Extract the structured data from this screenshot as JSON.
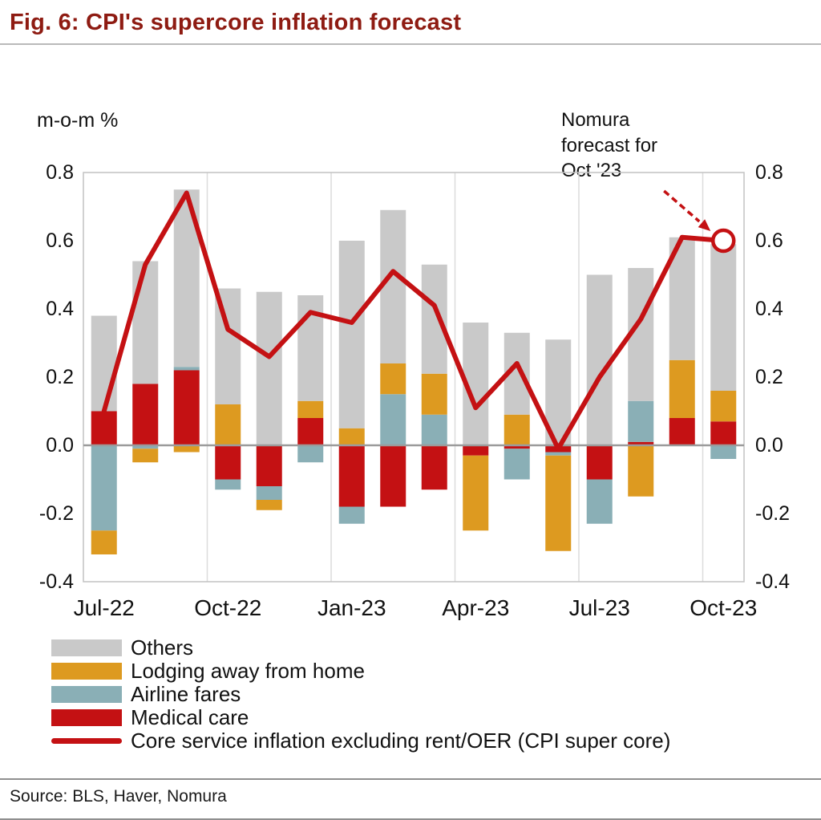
{
  "title": "Fig. 6: CPI's supercore inflation forecast",
  "axis_unit": "m-o-m %",
  "annotation": "Nomura\nforecast for\nOct '23",
  "source": "Source: BLS, Haver, Nomura",
  "legend": {
    "position": "bottom-left",
    "items": [
      {
        "label": "Others",
        "color": "#c9c9c9",
        "type": "rect"
      },
      {
        "label": "Lodging away from home",
        "color": "#dd9a20",
        "type": "rect"
      },
      {
        "label": "Airline fares",
        "color": "#8aafb6",
        "type": "rect"
      },
      {
        "label": "Medical care",
        "color": "#c41113",
        "type": "rect"
      },
      {
        "label": "Core service inflation excluding rent/OER (CPI super core)",
        "color": "#c41113",
        "type": "line"
      }
    ]
  },
  "chart_data": {
    "type": "bar",
    "subtype": "stacked bars with line overlay",
    "title": "Fig. 6: CPI's supercore inflation forecast",
    "ylabel": "m-o-m %",
    "xlabel": "",
    "ylim": [
      -0.4,
      0.8
    ],
    "y_ticks": [
      0.8,
      0.6,
      0.4,
      0.2,
      0.0,
      -0.2,
      -0.4
    ],
    "grid": "vertical lines every 3 months",
    "categories": [
      "Jul-22",
      "Aug-22",
      "Sep-22",
      "Oct-22",
      "Nov-22",
      "Dec-22",
      "Jan-23",
      "Feb-23",
      "Mar-23",
      "Apr-23",
      "May-23",
      "Jun-23",
      "Jul-23",
      "Aug-23",
      "Sep-23",
      "Oct-23"
    ],
    "x_tick_indices": [
      0,
      3,
      6,
      9,
      12,
      15
    ],
    "x_tick_labels": [
      "Jul-22",
      "Oct-22",
      "Jan-23",
      "Apr-23",
      "Jul-23",
      "Oct-23"
    ],
    "colors": {
      "medical": "#c41113",
      "airline": "#8aafb6",
      "lodging": "#dd9a20",
      "others": "#c9c9c9",
      "line": "#c41113"
    },
    "bar_series": [
      {
        "key": "medical",
        "name": "Medical care",
        "values": [
          0.1,
          0.18,
          0.22,
          -0.1,
          -0.12,
          0.08,
          -0.18,
          -0.18,
          -0.13,
          -0.03,
          -0.01,
          -0.02,
          -0.1,
          0.01,
          0.08,
          0.07
        ]
      },
      {
        "key": "airline",
        "name": "Airline fares",
        "values": [
          -0.25,
          -0.01,
          0.01,
          -0.03,
          -0.04,
          -0.05,
          -0.05,
          0.15,
          0.09,
          0,
          -0.09,
          -0.01,
          -0.13,
          0.12,
          0,
          -0.04
        ]
      },
      {
        "key": "lodging",
        "name": "Lodging away from home",
        "values": [
          -0.07,
          -0.04,
          -0.02,
          0.12,
          -0.03,
          0.05,
          0.05,
          0.09,
          0.12,
          -0.22,
          0.09,
          -0.28,
          0,
          -0.15,
          0.17,
          0.09
        ]
      },
      {
        "key": "others",
        "name": "Others",
        "values": [
          0.28,
          0.36,
          0.52,
          0.34,
          0.45,
          0.31,
          0.55,
          0.45,
          0.32,
          0.36,
          0.24,
          0.31,
          0.5,
          0.39,
          0.36,
          0.43
        ]
      }
    ],
    "line_series": {
      "name": "Core service inflation excluding rent/OER (CPI super core)",
      "values": [
        0.1,
        0.53,
        0.74,
        0.34,
        0.26,
        0.39,
        0.36,
        0.51,
        0.41,
        0.11,
        0.24,
        -0.01,
        0.2,
        0.37,
        0.61,
        0.6
      ],
      "forecast_last_point": true,
      "forecast_annotation": "Nomura forecast for Oct '23"
    }
  }
}
